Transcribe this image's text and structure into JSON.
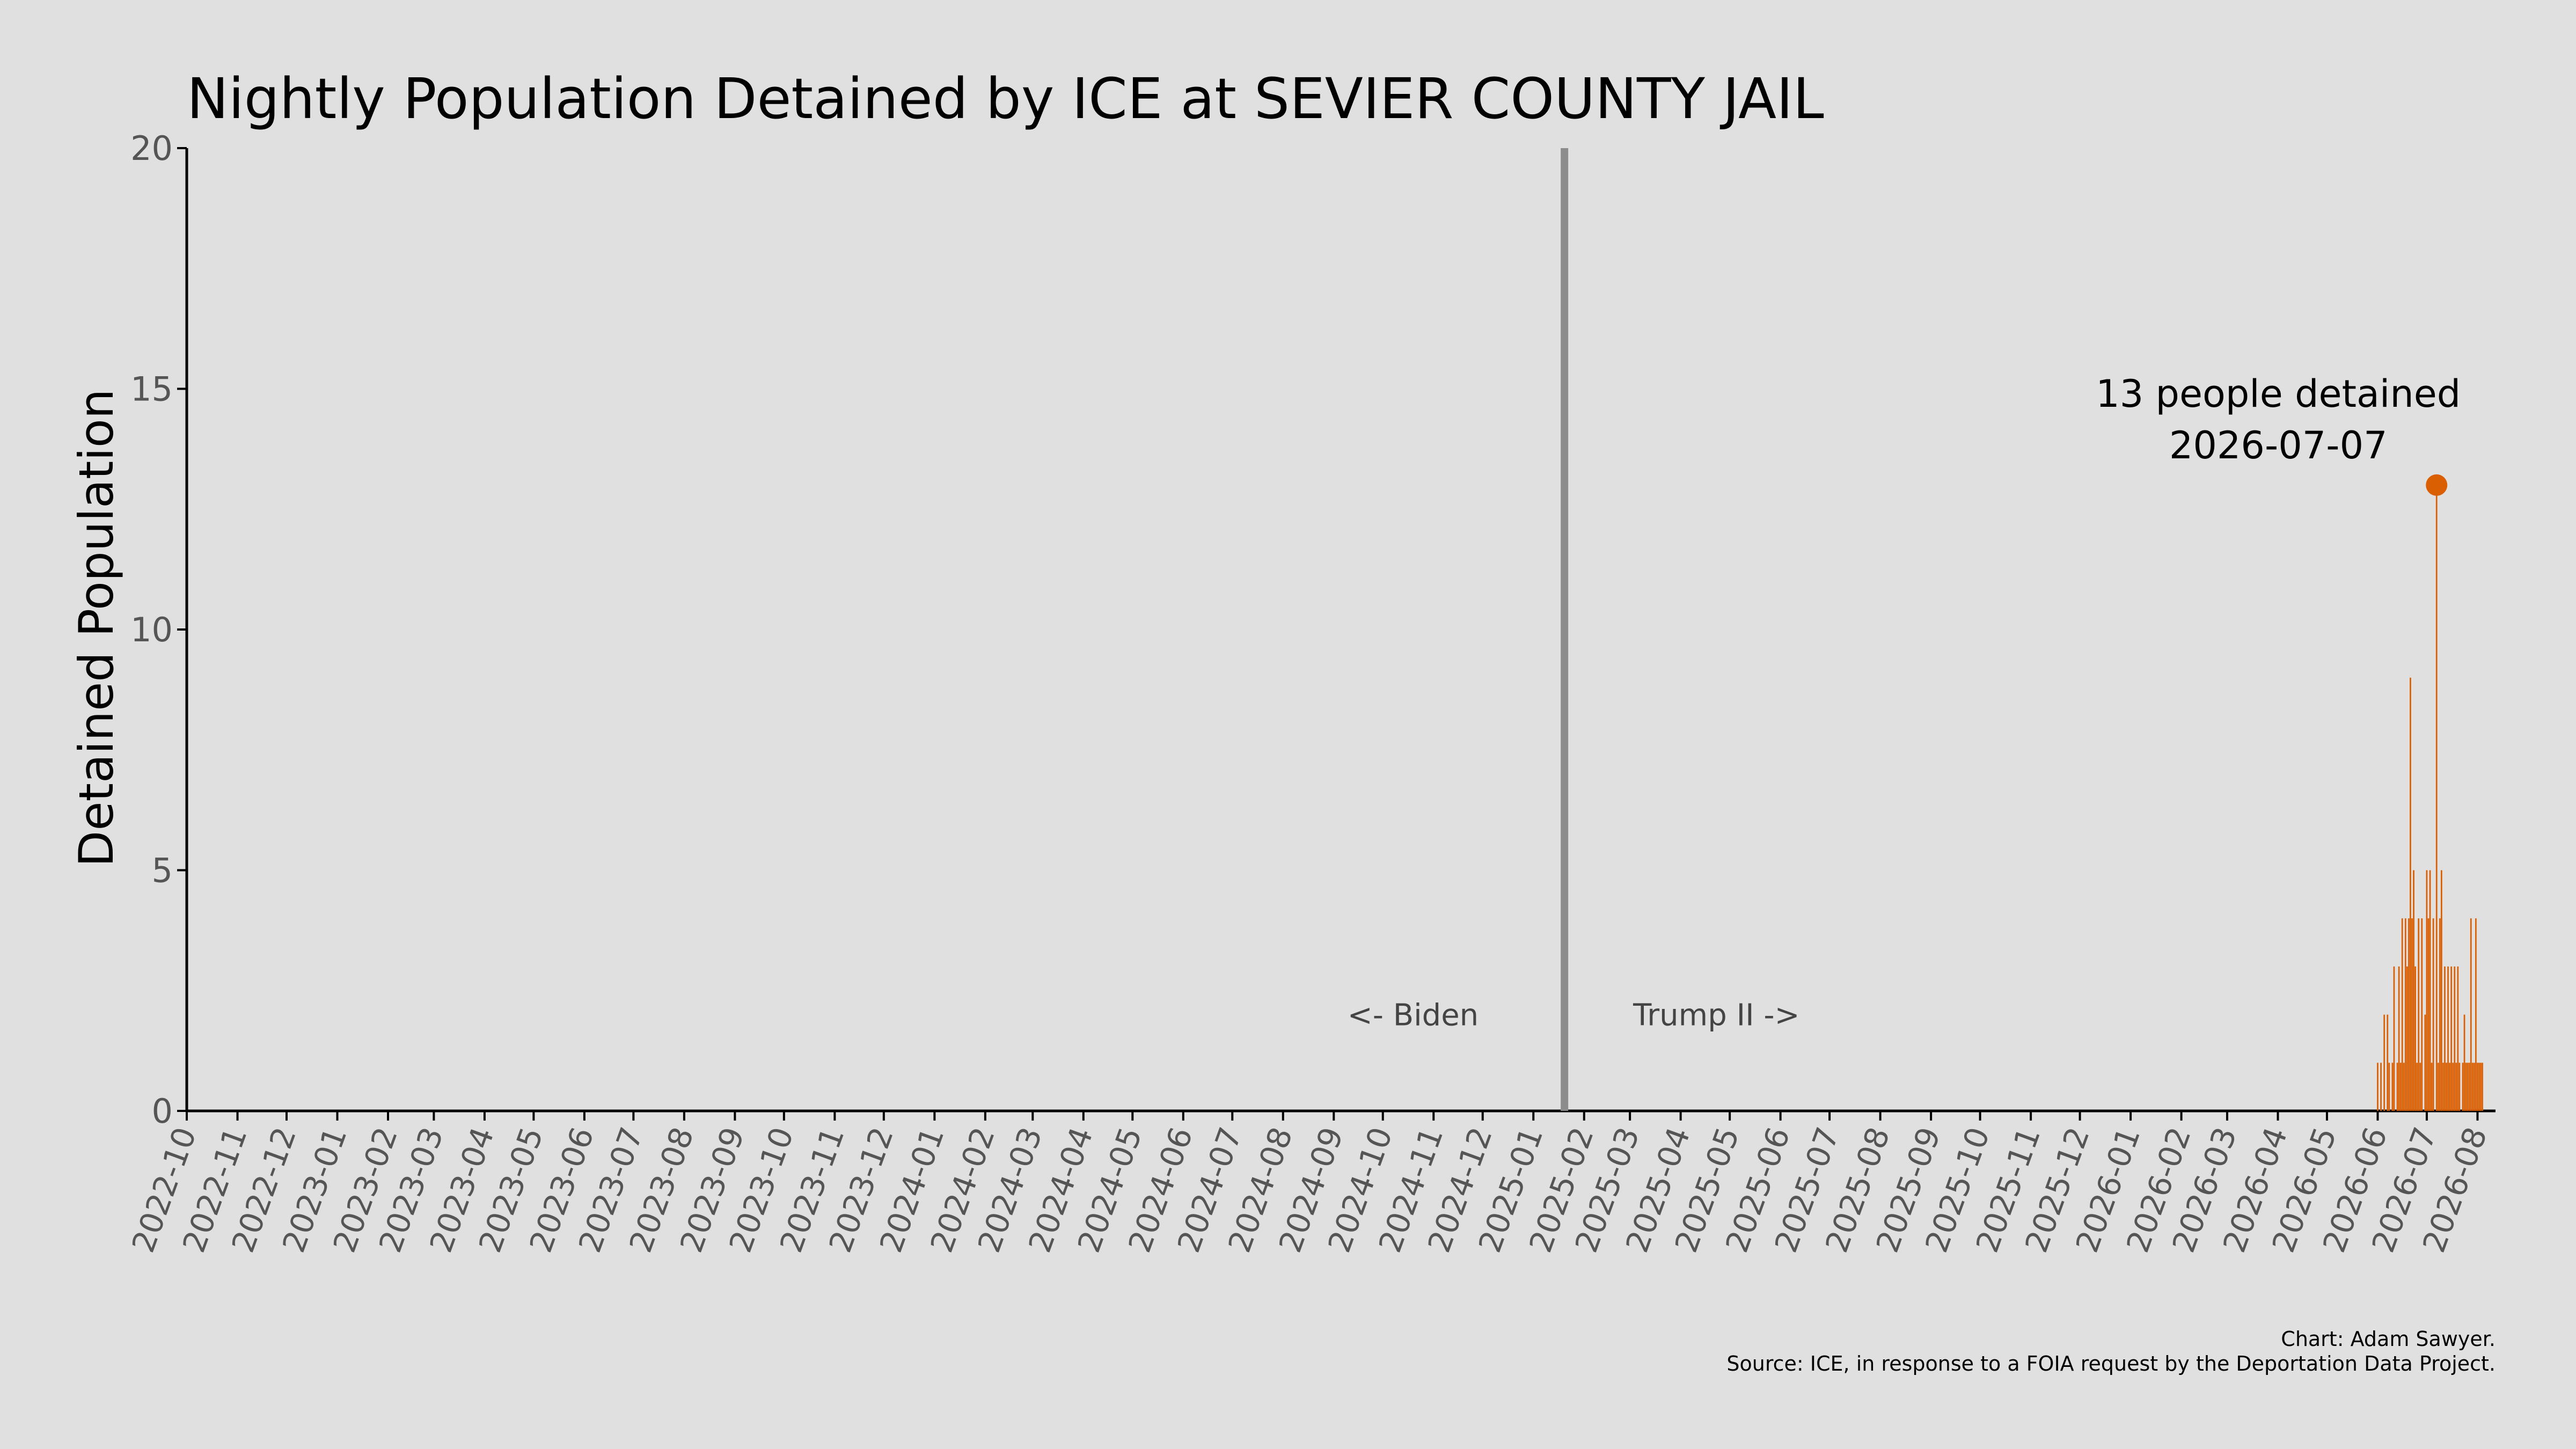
{
  "chart_data": {
    "type": "bar",
    "title": "Nightly Population Detained by ICE at SEVIER COUNTY JAIL",
    "xlabel": "",
    "ylabel": "Detained Population",
    "xlim": [
      "2022-10-01",
      "2026-08-12"
    ],
    "ylim": [
      0,
      20
    ],
    "yticks": [
      0,
      5,
      10,
      15,
      20
    ],
    "xticks": [
      "2022-10",
      "2022-11",
      "2022-12",
      "2023-01",
      "2023-02",
      "2023-03",
      "2023-04",
      "2023-05",
      "2023-06",
      "2023-07",
      "2023-08",
      "2023-09",
      "2023-10",
      "2023-11",
      "2023-12",
      "2024-01",
      "2024-02",
      "2024-03",
      "2024-04",
      "2024-05",
      "2024-06",
      "2024-07",
      "2024-08",
      "2024-09",
      "2024-10",
      "2024-11",
      "2024-12",
      "2025-01",
      "2025-02",
      "2025-03",
      "2025-04",
      "2025-05",
      "2025-06",
      "2025-07",
      "2025-08",
      "2025-09",
      "2025-10",
      "2025-11",
      "2025-12",
      "2026-01",
      "2026-02",
      "2026-03",
      "2026-04",
      "2026-05",
      "2026-06",
      "2026-07",
      "2026-08"
    ],
    "grid": false,
    "bar_color": "#d95f02",
    "divider": {
      "date": "2025-01-20",
      "color": "#8c8c8c"
    },
    "region_labels": {
      "left": "<- Biden",
      "right": "Trump II ->"
    },
    "annotation": {
      "date": "2026-07-07",
      "value": 13,
      "line1": "13 people detained",
      "line2": "2026-07-07"
    },
    "series": [
      {
        "x": [
          "2026-06-01",
          "2026-06-02",
          "2026-06-03",
          "2026-06-04",
          "2026-06-05",
          "2026-06-06",
          "2026-06-07",
          "2026-06-08",
          "2026-06-09",
          "2026-06-10",
          "2026-06-11",
          "2026-06-12",
          "2026-06-13",
          "2026-06-14",
          "2026-06-15",
          "2026-06-16",
          "2026-06-17",
          "2026-06-18",
          "2026-06-19",
          "2026-06-20",
          "2026-06-21",
          "2026-06-22",
          "2026-06-23",
          "2026-06-24",
          "2026-06-25",
          "2026-06-26",
          "2026-06-27",
          "2026-06-28",
          "2026-06-29",
          "2026-06-30",
          "2026-07-01",
          "2026-07-02",
          "2026-07-03",
          "2026-07-04",
          "2026-07-05",
          "2026-07-06",
          "2026-07-07",
          "2026-07-08",
          "2026-07-09",
          "2026-07-10",
          "2026-07-11",
          "2026-07-12",
          "2026-07-13",
          "2026-07-14",
          "2026-07-15",
          "2026-07-16",
          "2026-07-17",
          "2026-07-18",
          "2026-07-19",
          "2026-07-20",
          "2026-07-21",
          "2026-07-22",
          "2026-07-23",
          "2026-07-24",
          "2026-07-25",
          "2026-07-26",
          "2026-07-27",
          "2026-07-28",
          "2026-07-29",
          "2026-07-30",
          "2026-07-31",
          "2026-08-01",
          "2026-08-02",
          "2026-08-03",
          "2026-08-04"
        ],
        "values": [
          1,
          0,
          1,
          0,
          2,
          0,
          2,
          1,
          0,
          1,
          3,
          0,
          1,
          3,
          1,
          4,
          1,
          4,
          3,
          4,
          9,
          4,
          5,
          3,
          1,
          4,
          1,
          4,
          0,
          2,
          5,
          4,
          5,
          1,
          4,
          0,
          13,
          1,
          4,
          5,
          1,
          3,
          1,
          3,
          1,
          3,
          1,
          3,
          1,
          3,
          1,
          0,
          1,
          2,
          1,
          1,
          1,
          4,
          1,
          1,
          4,
          1,
          1,
          1,
          1
        ]
      }
    ]
  },
  "credits": {
    "line1": "Chart: Adam Sawyer.",
    "line2": "Source: ICE, in response to a FOIA request by the Deportation Data Project."
  }
}
